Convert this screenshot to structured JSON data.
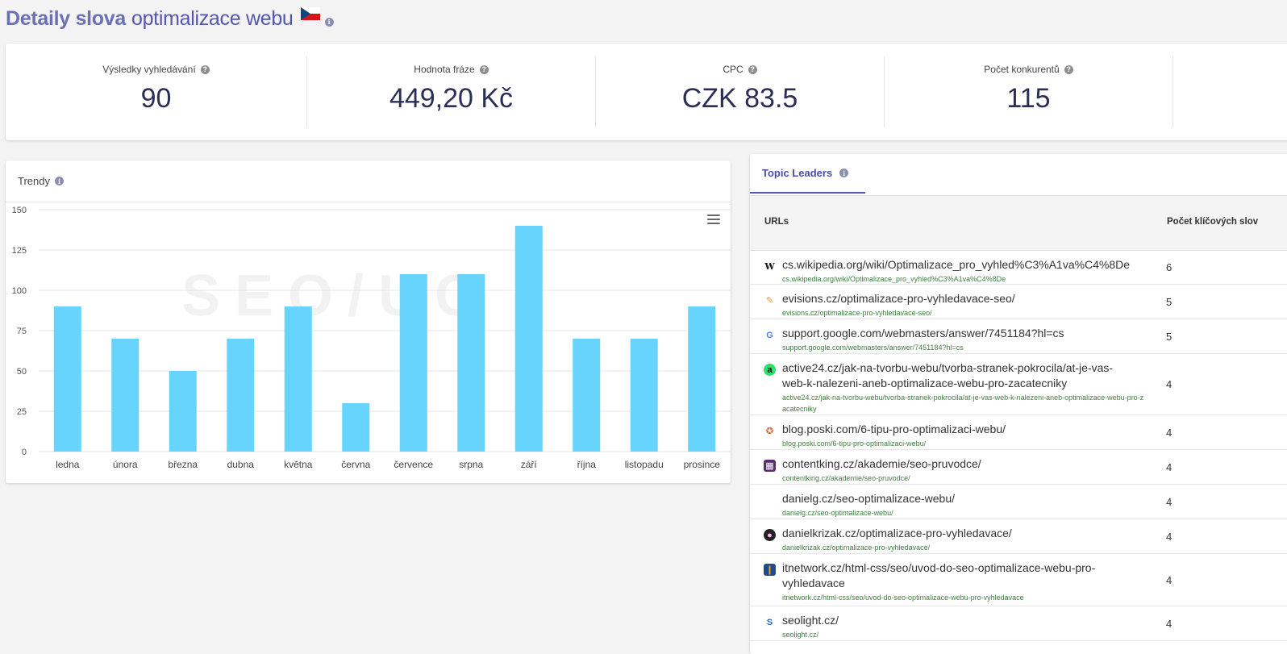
{
  "header": {
    "title_bold": "Detaily slova",
    "keyword": "optimalizace webu",
    "flag_icon": "czech-flag-icon",
    "info_icon": "info-icon"
  },
  "stats": [
    {
      "label": "Výsledky vyhledávání",
      "value": "90"
    },
    {
      "label": "Hodnota fráze",
      "value": "449,20 Kč"
    },
    {
      "label": "CPC",
      "value": "CZK 83.5"
    },
    {
      "label": "Počet konkurentů",
      "value": "115"
    }
  ],
  "trend": {
    "title": "Trendy",
    "menu_icon": "hamburger-menu-icon",
    "watermark": "SEO/UC"
  },
  "chart_data": {
    "type": "bar",
    "categories": [
      "ledna",
      "února",
      "března",
      "dubna",
      "května",
      "června",
      "července",
      "srpna",
      "září",
      "října",
      "listopadu",
      "prosince"
    ],
    "values": [
      90,
      70,
      50,
      70,
      90,
      30,
      110,
      110,
      140,
      70,
      70,
      90
    ],
    "ylim": [
      0,
      150
    ],
    "yticks": [
      0,
      25,
      50,
      75,
      100,
      125,
      150
    ],
    "grid": true,
    "color": "#66d4fd"
  },
  "leaders": {
    "tab_label": "Topic Leaders",
    "col_urls": "URLs",
    "col_count": "Počet klíčových slov",
    "rows": [
      {
        "icon": "wikipedia-icon",
        "url": "cs.wikipedia.org/wiki/Optimalizace_pro_vyhled%C3%A1va%C4%8De",
        "sub": "cs.wikipedia.org/wiki/Optimalizace_pro_vyhled%C3%A1va%C4%8De",
        "count": "6"
      },
      {
        "icon": "evisions-icon",
        "url": "evisions.cz/optimalizace-pro-vyhledavace-seo/",
        "sub": "evisions.cz/optimalizace-pro-vyhledavace-seo/",
        "count": "5"
      },
      {
        "icon": "google-icon",
        "url": "support.google.com/webmasters/answer/7451184?hl=cs",
        "sub": "support.google.com/webmasters/answer/7451184?hl=cs",
        "count": "5"
      },
      {
        "icon": "active24-icon",
        "url": "active24.cz/jak-na-tvorbu-webu/tvorba-stranek-pokrocila/at-je-vas-web-k-nalezeni-aneb-optimalizace-webu-pro-zacatecniky",
        "sub": "active24.cz/jak-na-tvorbu-webu/tvorba-stranek-pokrocila/at-je-vas-web-k-nalezeni-aneb-optimalizace-webu-pro-zacatecniky",
        "count": "4"
      },
      {
        "icon": "poski-icon",
        "url": "blog.poski.com/6-tipu-pro-optimalizaci-webu/",
        "sub": "blog.poski.com/6-tipu-pro-optimalizaci-webu/",
        "count": "4"
      },
      {
        "icon": "contentking-icon",
        "url": "contentking.cz/akademie/seo-pruvodce/",
        "sub": "contentking.cz/akademie/seo-pruvodce/",
        "count": "4"
      },
      {
        "icon": "",
        "url": "danielg.cz/seo-optimalizace-webu/",
        "sub": "danielg.cz/seo-optimalizace-webu/",
        "count": "4"
      },
      {
        "icon": "danielkrizak-avatar-icon",
        "url": "danielkrizak.cz/optimalizace-pro-vyhledavace/",
        "sub": "danielkrizak.cz/optimalizace-pro-vyhledavace/",
        "count": "4"
      },
      {
        "icon": "itnetwork-icon",
        "url": "itnetwork.cz/html-css/seo/uvod-do-seo-optimalizace-webu-pro-vyhledavace",
        "sub": "itnetwork.cz/html-css/seo/uvod-do-seo-optimalizace-webu-pro-vyhledavace",
        "count": "4"
      },
      {
        "icon": "seolight-icon",
        "url": "seolight.cz/",
        "sub": "seolight.cz/",
        "count": "4"
      }
    ]
  }
}
